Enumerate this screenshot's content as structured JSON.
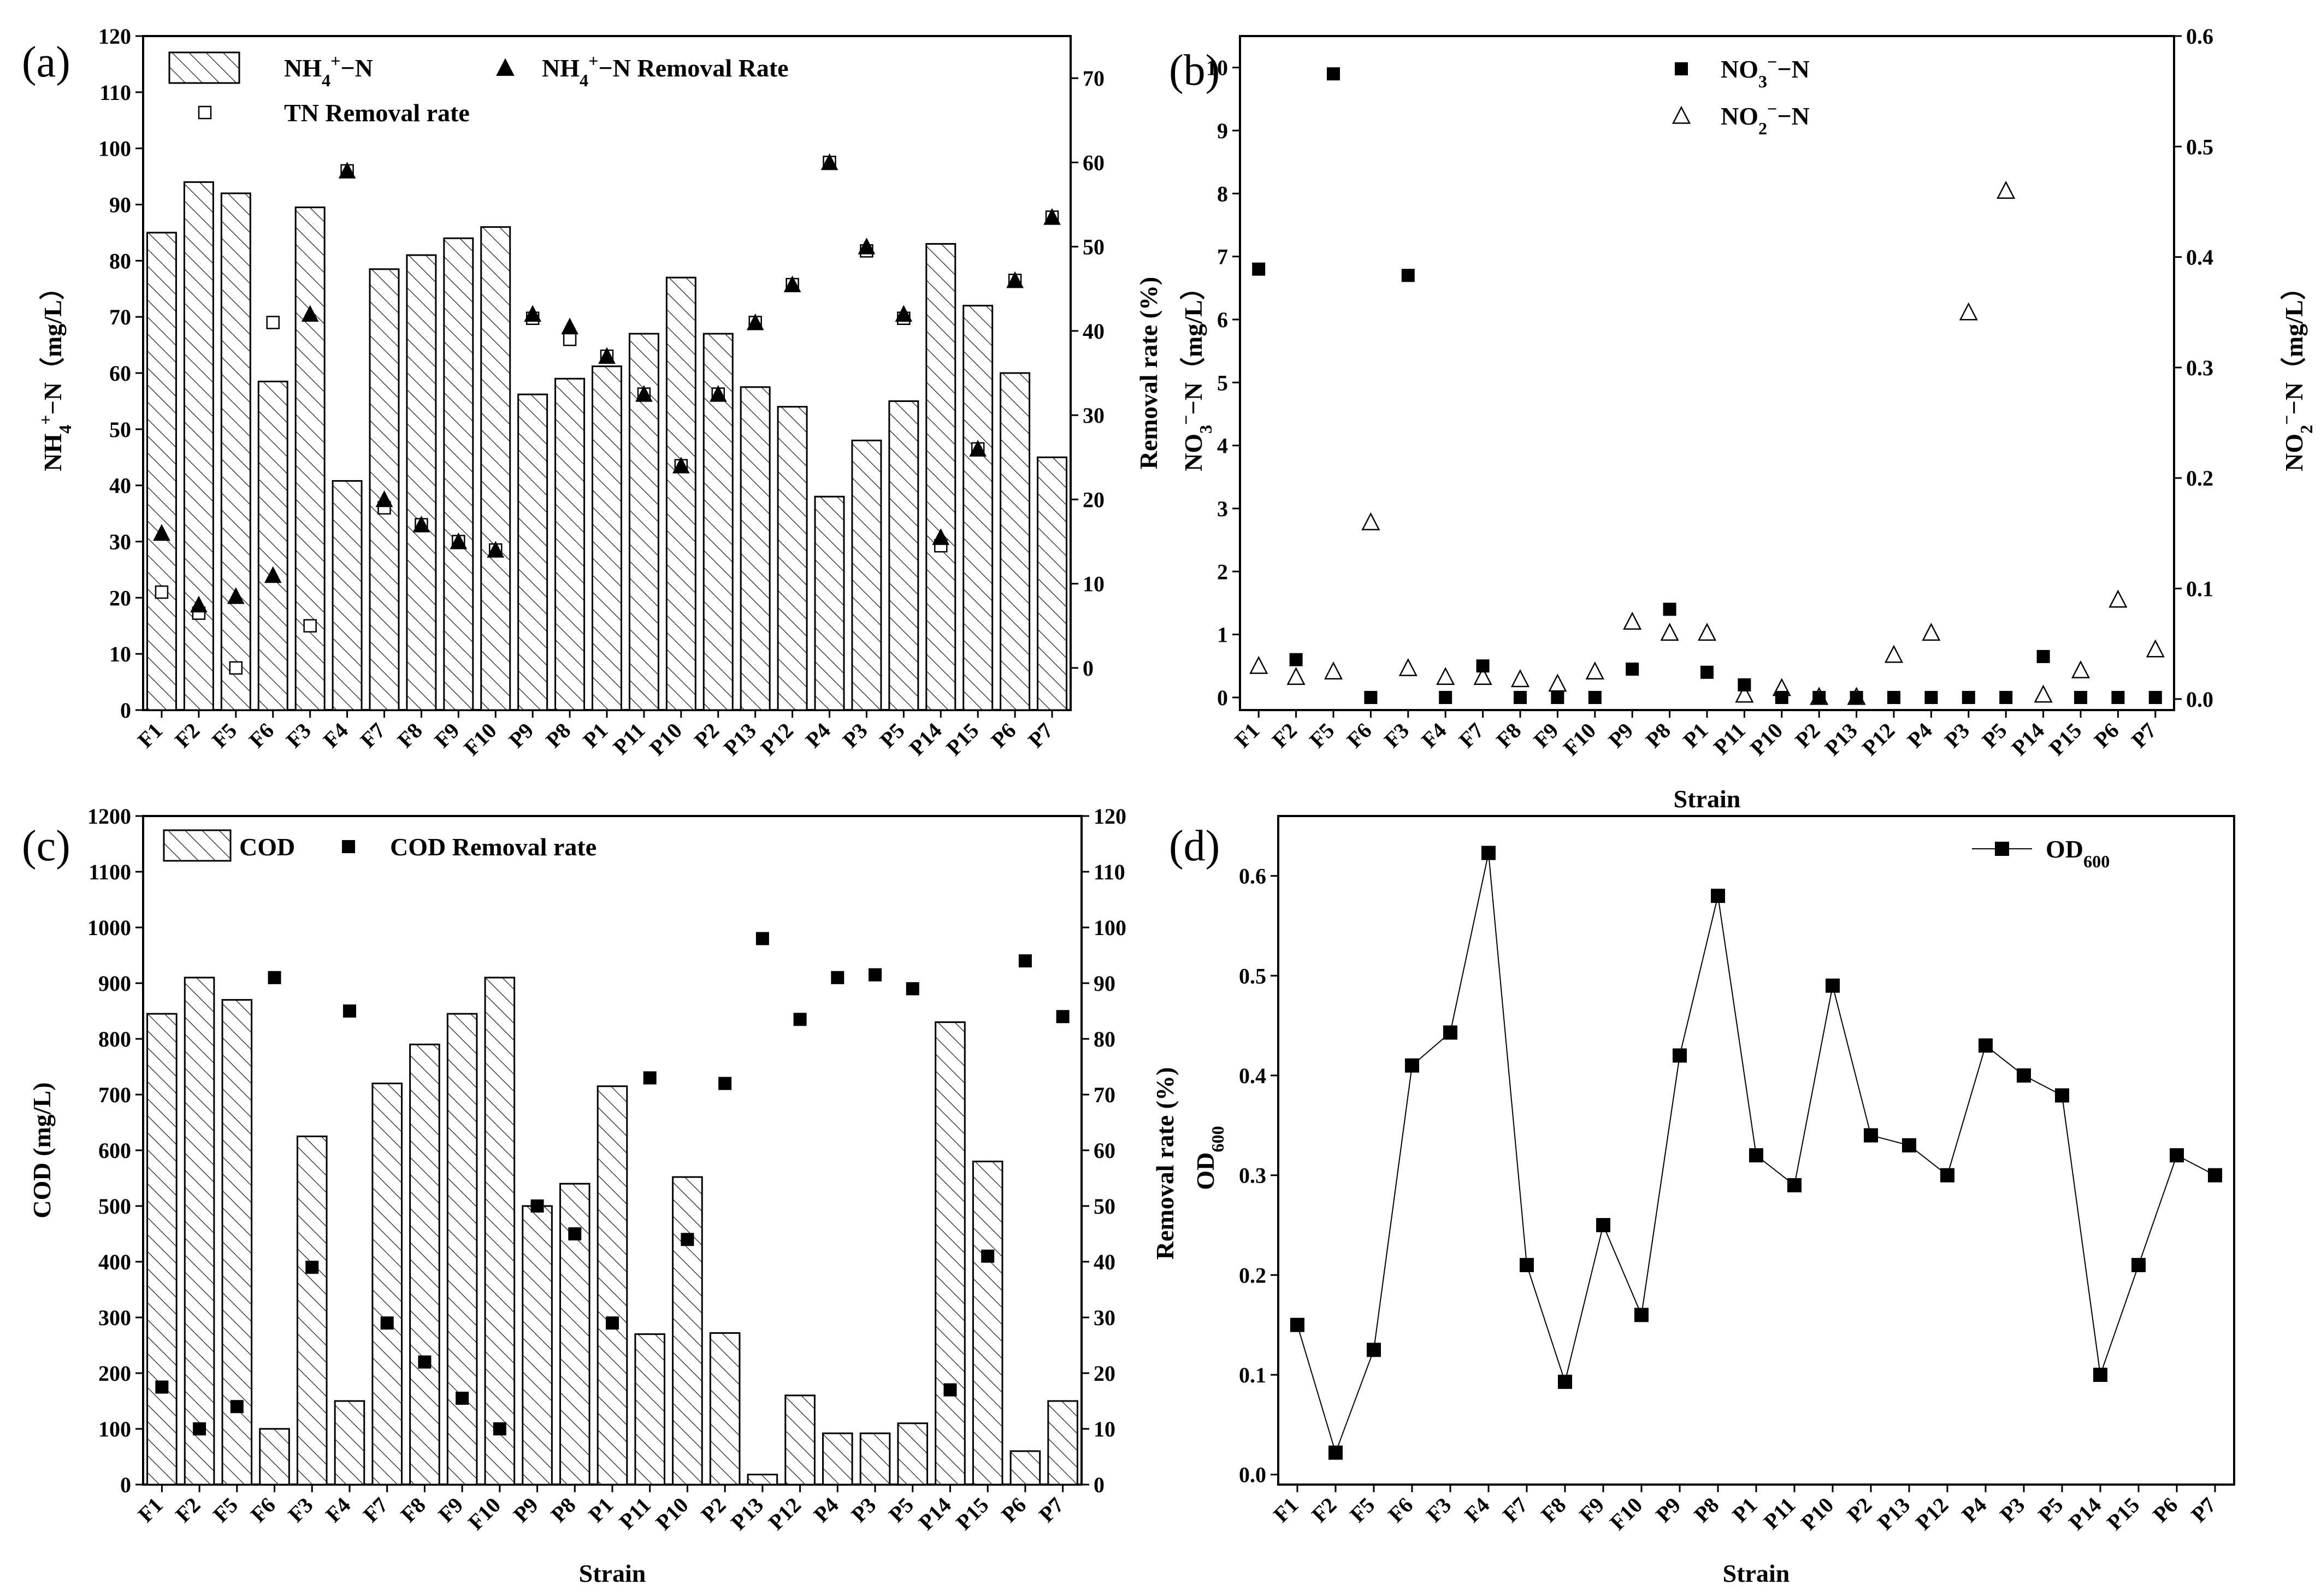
{
  "chart_data": [
    {
      "panel": "(a)",
      "type": "bar",
      "categories": [
        "F1",
        "F2",
        "F5",
        "F6",
        "F3",
        "F4",
        "F7",
        "F8",
        "F9",
        "F10",
        "P9",
        "P8",
        "P1",
        "P11",
        "P10",
        "P2",
        "P13",
        "P12",
        "P4",
        "P3",
        "P5",
        "P14",
        "P15",
        "P6",
        "P7"
      ],
      "xlabel": "",
      "ylabel_left": "NH4+−N（mg/L）",
      "ylabel_right": "Removal rate (%)",
      "ylim_left": [
        0,
        120
      ],
      "ylim_right": [
        -5,
        75
      ],
      "yticks_left": [
        0,
        10,
        20,
        30,
        40,
        50,
        60,
        70,
        80,
        90,
        100,
        110,
        120
      ],
      "yticks_right": [
        0,
        10,
        20,
        30,
        40,
        50,
        60,
        70
      ],
      "series": [
        {
          "name": "NH4+−N",
          "kind": "bar",
          "axis": "left",
          "values": [
            85,
            94,
            92,
            58.5,
            89.5,
            40.8,
            78.5,
            81,
            84,
            86,
            56.2,
            59,
            61.2,
            67,
            77,
            67,
            57.5,
            54,
            38,
            48,
            55,
            83,
            72,
            60,
            45
          ]
        },
        {
          "name": "NH4+−N Removal Rate",
          "kind": "triangle",
          "axis": "right",
          "values": [
            16,
            7.5,
            8.5,
            11,
            42,
            59,
            20,
            17,
            15,
            14,
            42,
            40.5,
            37,
            32.5,
            24,
            32.5,
            41,
            45.5,
            60,
            50,
            42,
            15.5,
            26,
            46,
            53.5
          ]
        },
        {
          "name": "TN Removal rate",
          "kind": "open-square",
          "axis": "right",
          "values": [
            9,
            6.5,
            0,
            41,
            5,
            59,
            19,
            17,
            15,
            14,
            41.5,
            39,
            37,
            32.5,
            24,
            32.5,
            41,
            45.5,
            60,
            49.5,
            41.5,
            14.5,
            26,
            46,
            53.5
          ]
        }
      ],
      "legend": {
        "bar": "NH",
        "bar_sup": "4",
        "bar_sup2": "+",
        "bar_tail": "−N",
        "tri": "NH",
        "tri_sup": "4",
        "tri_sup2": "+",
        "tri_tail": "−N Removal Rate",
        "sq": "TN Removal rate"
      },
      "grid": false
    },
    {
      "panel": "(b)",
      "type": "scatter",
      "categories": [
        "F1",
        "F2",
        "F5",
        "F6",
        "F3",
        "F4",
        "F7",
        "F8",
        "F9",
        "F10",
        "P9",
        "P8",
        "P1",
        "P11",
        "P10",
        "P2",
        "P13",
        "P12",
        "P4",
        "P3",
        "P5",
        "P14",
        "P15",
        "P6",
        "P7"
      ],
      "xlabel": "Strain",
      "ylabel_left": "NO3−−N（mg/L）",
      "ylabel_right": "NO2−−N（mg/L）",
      "ylim_left": [
        -0.2,
        10.5
      ],
      "ylim_right": [
        -0.01,
        0.6
      ],
      "yticks_left": [
        0,
        1,
        2,
        3,
        4,
        5,
        6,
        7,
        8,
        9,
        10
      ],
      "yticks_right": [
        0.0,
        0.1,
        0.2,
        0.3,
        0.4,
        0.5,
        0.6
      ],
      "series": [
        {
          "name": "NO3−−N",
          "kind": "filled-square",
          "axis": "left",
          "values": [
            6.8,
            0.6,
            9.9,
            0,
            6.7,
            0,
            0.5,
            0,
            0,
            0,
            0.45,
            1.4,
            0.4,
            0.2,
            0,
            0,
            0,
            0,
            0,
            0,
            0,
            0.65,
            0,
            0,
            0
          ]
        },
        {
          "name": "NO2−−N",
          "kind": "open-triangle",
          "axis": "right",
          "values": [
            0.03,
            0.02,
            0.025,
            0.16,
            0.028,
            0.02,
            0.02,
            0.018,
            0.014,
            0.025,
            0.07,
            0.06,
            0.06,
            0.004,
            0.01,
            0.002,
            0.002,
            0.04,
            0.06,
            0.35,
            0.46,
            0.004,
            0.026,
            0.09,
            0.045
          ]
        }
      ],
      "legend": {
        "no3": "NO",
        "no3_sub": "3",
        "no3_sup": "−",
        "no3_tail": "−N",
        "no2": "NO",
        "no2_sub": "2",
        "no2_sup": "−",
        "no2_tail": "−N"
      },
      "grid": false
    },
    {
      "panel": "(c)",
      "type": "bar",
      "categories": [
        "F1",
        "F2",
        "F5",
        "F6",
        "F3",
        "F4",
        "F7",
        "F8",
        "F9",
        "F10",
        "P9",
        "P8",
        "P1",
        "P11",
        "P10",
        "P2",
        "P13",
        "P12",
        "P4",
        "P3",
        "P5",
        "P14",
        "P15",
        "P6",
        "P7"
      ],
      "xlabel": "Strain",
      "ylabel_left": "COD (mg/L)",
      "ylabel_right": "Removal rate (%)",
      "ylim_left": [
        0,
        1200
      ],
      "ylim_right": [
        0,
        120
      ],
      "yticks_left": [
        0,
        100,
        200,
        300,
        400,
        500,
        600,
        700,
        800,
        900,
        1000,
        1100,
        1200
      ],
      "yticks_right": [
        0,
        10,
        20,
        30,
        40,
        50,
        60,
        70,
        80,
        90,
        100,
        110,
        120
      ],
      "series": [
        {
          "name": "COD",
          "kind": "bar",
          "axis": "left",
          "values": [
            845,
            910,
            870,
            100,
            625,
            150,
            720,
            790,
            845,
            910,
            500,
            540,
            715,
            270,
            552,
            272,
            18,
            160,
            92,
            92,
            110,
            830,
            580,
            60,
            150
          ]
        },
        {
          "name": "COD Removal rate",
          "kind": "filled-square",
          "axis": "right",
          "values": [
            17.5,
            10,
            14,
            91,
            39,
            85,
            29,
            22,
            15.5,
            10,
            50,
            45,
            29,
            73,
            44,
            72,
            98,
            83.5,
            91,
            91.5,
            89,
            17,
            41,
            94,
            84
          ]
        }
      ],
      "legend": {
        "bar": "COD",
        "sq": "COD Removal rate"
      },
      "grid": false
    },
    {
      "panel": "(d)",
      "type": "line",
      "categories": [
        "F1",
        "F2",
        "F5",
        "F6",
        "F3",
        "F4",
        "F7",
        "F8",
        "F9",
        "F10",
        "P9",
        "P8",
        "P1",
        "P11",
        "P10",
        "P2",
        "P13",
        "P12",
        "P4",
        "P3",
        "P5",
        "P14",
        "P15",
        "P6",
        "P7"
      ],
      "xlabel": "Strain",
      "ylabel_left": "Removal rate (%)",
      "ylabel_left2": "OD600",
      "ylim_left": [
        -0.01,
        0.66
      ],
      "yticks_left": [
        0.0,
        0.1,
        0.2,
        0.3,
        0.4,
        0.5,
        0.6
      ],
      "series": [
        {
          "name": "OD600",
          "kind": "line-square",
          "axis": "left",
          "values": [
            0.15,
            0.022,
            0.125,
            0.41,
            0.443,
            0.623,
            0.21,
            0.093,
            0.25,
            0.16,
            0.42,
            0.58,
            0.32,
            0.29,
            0.49,
            0.34,
            0.33,
            0.3,
            0.43,
            0.4,
            0.38,
            0.1,
            0.21,
            0.32,
            0.3
          ]
        }
      ],
      "legend": {
        "line": "OD",
        "line_sub": "600"
      },
      "grid": false
    }
  ],
  "colors": {
    "ink": "#000000",
    "background": "#ffffff",
    "bar_fill": "#ffffff"
  }
}
